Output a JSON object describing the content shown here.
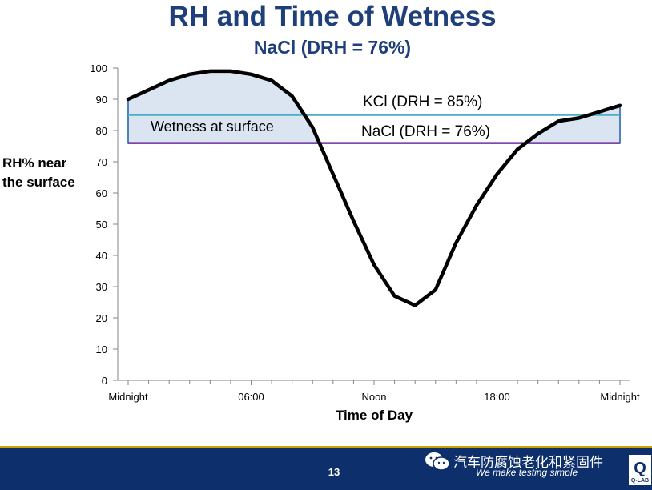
{
  "title": "RH and Time of Wetness",
  "subtitle": "NaCl (DRH = 76%)",
  "y_axis_label_line1": "RH% near",
  "y_axis_label_line2": "the surface",
  "x_axis_label": "Time of Day",
  "footer": {
    "page_number": "13",
    "wechat_text": "汽车防腐蚀老化和紧固件",
    "tagline": "We make testing simple",
    "logo_text": "Q-LAB",
    "background_color": "#0d2f6b"
  },
  "chart_data": {
    "type": "line",
    "title": "RH and Time of Wetness",
    "subtitle": "NaCl (DRH = 76%)",
    "xlabel": "Time of Day",
    "ylabel": "RH% near the surface",
    "ylim": [
      0,
      100
    ],
    "yticks": [
      0,
      10,
      20,
      30,
      40,
      50,
      60,
      70,
      80,
      90,
      100
    ],
    "xlim": [
      0,
      24
    ],
    "xticks": [
      {
        "x": 0,
        "label": "Midnight"
      },
      {
        "x": 6,
        "label": "06:00"
      },
      {
        "x": 12,
        "label": "Noon"
      },
      {
        "x": 18,
        "label": "18:00"
      },
      {
        "x": 24,
        "label": "Midnight"
      }
    ],
    "grid": false,
    "series": [
      {
        "x": [
          0,
          1,
          2,
          3,
          4,
          5,
          6,
          7,
          8,
          9,
          10,
          11,
          12,
          13,
          14,
          15,
          16,
          17,
          18,
          19,
          20,
          21,
          22,
          23,
          24
        ],
        "y": [
          90,
          93,
          96,
          98,
          99,
          99,
          98,
          96,
          91,
          81,
          66,
          51,
          37,
          27,
          24,
          29,
          44,
          56,
          66,
          74,
          79,
          83,
          84,
          86,
          88
        ],
        "color": "#000000"
      }
    ],
    "reference_lines": [
      {
        "label": "KCl (DRH = 85%)",
        "y": 85,
        "color": "#4bacc6"
      },
      {
        "label": "NaCl (DRH = 76%)",
        "y": 76,
        "color": "#7030a0"
      }
    ],
    "annotations": [
      {
        "text": "Wetness at surface"
      }
    ],
    "shaded_region": {
      "above": 76,
      "fill": "#dbe5f1",
      "edge": "#4f81bd"
    }
  }
}
